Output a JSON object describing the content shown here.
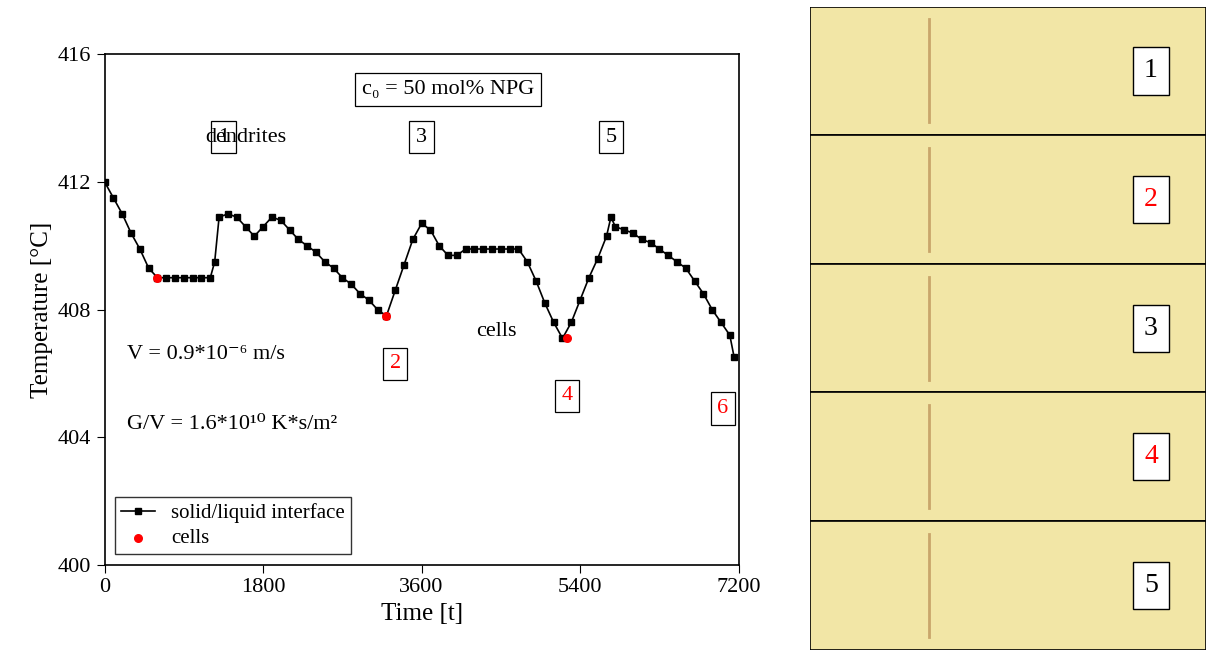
{
  "chart_data": {
    "type": "line",
    "xlabel": "Time [t]",
    "ylabel": "Temperature [°C]",
    "xlim": [
      0,
      7200
    ],
    "xticks": [
      0,
      1800,
      3600,
      5400,
      7200
    ],
    "ylim": [
      400,
      416
    ],
    "yticks": [
      400,
      404,
      408,
      412,
      416
    ],
    "legend": "lower left",
    "series": [
      {
        "name": "solid/liquid interface",
        "type": "line",
        "color": "#000000",
        "marker": "square",
        "line_style": "solid",
        "x": [
          0,
          100,
          200,
          300,
          400,
          500,
          600,
          700,
          800,
          900,
          1000,
          1100,
          1200,
          1250,
          1300,
          1400,
          1500,
          1600,
          1700,
          1800,
          1900,
          2000,
          2100,
          2200,
          2300,
          2400,
          2500,
          2600,
          2700,
          2800,
          2900,
          3000,
          3100,
          3200,
          3300,
          3400,
          3500,
          3600,
          3700,
          3800,
          3900,
          4000,
          4100,
          4200,
          4300,
          4400,
          4500,
          4600,
          4700,
          4800,
          4900,
          5000,
          5100,
          5200,
          5300,
          5400,
          5500,
          5600,
          5700,
          5750,
          5800,
          5900,
          6000,
          6100,
          6200,
          6300,
          6400,
          6500,
          6600,
          6700,
          6800,
          6900,
          7000,
          7100,
          7150
        ],
        "values": [
          412.0,
          411.5,
          411.0,
          410.4,
          409.9,
          409.3,
          409.0,
          409.0,
          409.0,
          409.0,
          409.0,
          409.0,
          409.0,
          409.5,
          410.9,
          411.0,
          410.9,
          410.6,
          410.3,
          410.6,
          410.9,
          410.8,
          410.5,
          410.2,
          410.0,
          409.8,
          409.5,
          409.3,
          409.0,
          408.8,
          408.5,
          408.3,
          408.0,
          407.8,
          408.6,
          409.4,
          410.2,
          410.7,
          410.5,
          410.0,
          409.7,
          409.7,
          409.9,
          409.9,
          409.9,
          409.9,
          409.9,
          409.9,
          409.9,
          409.5,
          408.9,
          408.2,
          407.6,
          407.1,
          407.6,
          408.3,
          409.0,
          409.6,
          410.3,
          410.9,
          410.6,
          410.5,
          410.4,
          410.2,
          410.1,
          409.9,
          409.7,
          409.5,
          409.3,
          408.9,
          408.5,
          408.0,
          407.6,
          407.2,
          406.5
        ]
      },
      {
        "name": "cells",
        "type": "scatter",
        "color": "#ff0000",
        "marker": "circle",
        "x": [
          600,
          3200,
          5250
        ],
        "values": [
          409.0,
          407.8,
          407.1
        ]
      }
    ],
    "annotations": [
      {
        "text": "c₀ = 50 mol% NPG",
        "x": 3900,
        "y": 414.9,
        "color": "#000000"
      },
      {
        "text": "1",
        "x": 1350,
        "y": 413.4,
        "color": "#000000"
      },
      {
        "text": "3",
        "x": 3600,
        "y": 413.4,
        "color": "#000000"
      },
      {
        "text": "5",
        "x": 5750,
        "y": 413.4,
        "color": "#000000"
      },
      {
        "text": "2",
        "x": 3300,
        "y": 406.3,
        "color": "#ff0000"
      },
      {
        "text": "4",
        "x": 5250,
        "y": 405.3,
        "color": "#ff0000"
      },
      {
        "text": "6",
        "x": 7020,
        "y": 404.9,
        "color": "#ff0000"
      }
    ],
    "notes": [
      {
        "text": "dendrites",
        "x": 1600,
        "y": 413.4,
        "color": "#000000"
      },
      {
        "text": "cells",
        "x": 4450,
        "y": 407.3,
        "color": "#000000"
      },
      {
        "text": "V = 0.9*10⁻⁶ m/s",
        "x": 250,
        "y": 406.6,
        "color": "#000000"
      },
      {
        "text": "G/V = 1.6*10¹⁰ K*s/m²",
        "x": 250,
        "y": 404.4,
        "color": "#000000"
      }
    ]
  },
  "image_panels": [
    {
      "label": "1",
      "color": "#000000"
    },
    {
      "label": "2",
      "color": "#ff0000"
    },
    {
      "label": "3",
      "color": "#000000"
    },
    {
      "label": "4",
      "color": "#ff0000"
    },
    {
      "label": "5",
      "color": "#000000"
    }
  ]
}
